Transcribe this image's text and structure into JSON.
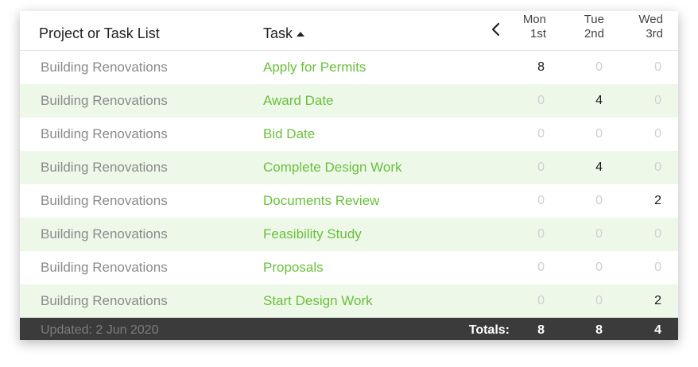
{
  "header": {
    "project_col": "Project or Task List",
    "task_col": "Task",
    "days": [
      {
        "dow": "Mon",
        "date": "1st"
      },
      {
        "dow": "Tue",
        "date": "2nd"
      },
      {
        "dow": "Wed",
        "date": "3rd"
      }
    ]
  },
  "rows": [
    {
      "project": "Building Renovations",
      "task": "Apply for Permits",
      "mon": "8",
      "tue": "0",
      "wed": "0"
    },
    {
      "project": "Building Renovations",
      "task": "Award Date",
      "mon": "0",
      "tue": "4",
      "wed": "0"
    },
    {
      "project": "Building Renovations",
      "task": "Bid Date",
      "mon": "0",
      "tue": "0",
      "wed": "0"
    },
    {
      "project": "Building Renovations",
      "task": "Complete Design Work",
      "mon": "0",
      "tue": "4",
      "wed": "0"
    },
    {
      "project": "Building Renovations",
      "task": "Documents Review",
      "mon": "0",
      "tue": "0",
      "wed": "2"
    },
    {
      "project": "Building Renovations",
      "task": "Feasibility Study",
      "mon": "0",
      "tue": "0",
      "wed": "0"
    },
    {
      "project": "Building Renovations",
      "task": "Proposals",
      "mon": "0",
      "tue": "0",
      "wed": "0"
    },
    {
      "project": "Building Renovations",
      "task": "Start Design Work",
      "mon": "0",
      "tue": "0",
      "wed": "2"
    }
  ],
  "footer": {
    "updated": "Updated: 2 Jun 2020",
    "totals_label": "Totals:",
    "totals": {
      "mon": "8",
      "tue": "8",
      "wed": "4"
    }
  },
  "icons": {
    "prev": "chevron-left-icon",
    "sort": "sort-ascending-icon"
  },
  "colors": {
    "task_link": "#6abf3a",
    "alt_row": "#edf8e9",
    "footer_bg": "#3b3b3b"
  }
}
